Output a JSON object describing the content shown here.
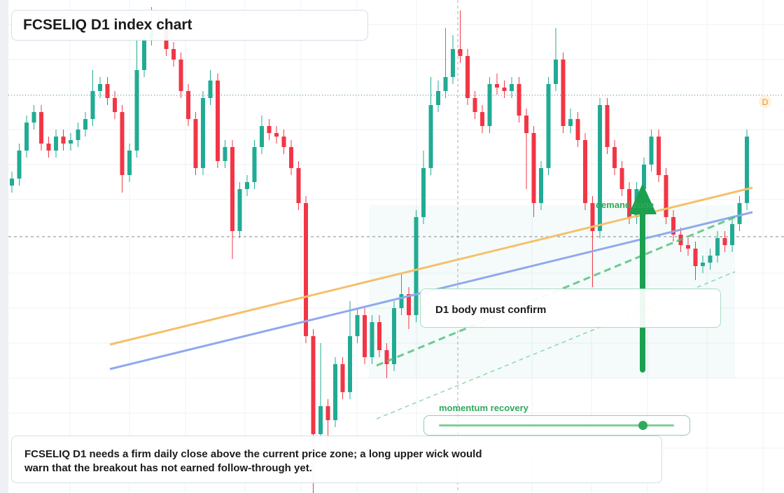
{
  "title": "FCSELIQ D1 index chart",
  "chart_data": {
    "type": "candlestick",
    "ylim": [
      0,
      704
    ],
    "up_color": "#22ab94",
    "down_color": "#f23645",
    "open": [
      439,
      449,
      489,
      529,
      544,
      499,
      489,
      509,
      499,
      504,
      519,
      534,
      574,
      584,
      564,
      544,
      454,
      489,
      604,
      649,
      664,
      674,
      634,
      619,
      574,
      534,
      464,
      564,
      589,
      474,
      494,
      374,
      434,
      444,
      494,
      524,
      514,
      509,
      494,
      464,
      414,
      224,
      84,
      124,
      104,
      184,
      144,
      224,
      254,
      194,
      244,
      204,
      184,
      264,
      284,
      254,
      394,
      464,
      554,
      574,
      594,
      634,
      624,
      564,
      544,
      524,
      584,
      579,
      574,
      584,
      539,
      514,
      414,
      464,
      584,
      619,
      524,
      534,
      504,
      414,
      374,
      554,
      494,
      464,
      434,
      394,
      434,
      469,
      509,
      454,
      394,
      369,
      354,
      349,
      324,
      329,
      339,
      364,
      354,
      384,
      414
    ],
    "high": [
      459,
      499,
      539,
      554,
      554,
      509,
      519,
      519,
      514,
      529,
      544,
      604,
      594,
      594,
      574,
      554,
      499,
      649,
      659,
      694,
      684,
      684,
      644,
      629,
      584,
      544,
      574,
      604,
      599,
      504,
      504,
      444,
      454,
      504,
      539,
      534,
      524,
      519,
      504,
      474,
      424,
      234,
      214,
      134,
      194,
      194,
      274,
      264,
      264,
      254,
      254,
      214,
      274,
      314,
      294,
      404,
      489,
      594,
      589,
      664,
      654,
      689,
      634,
      574,
      554,
      594,
      599,
      589,
      594,
      594,
      549,
      524,
      474,
      594,
      664,
      629,
      549,
      544,
      514,
      424,
      564,
      564,
      504,
      474,
      444,
      444,
      479,
      519,
      519,
      464,
      404,
      379,
      364,
      359,
      339,
      349,
      374,
      374,
      394,
      424,
      519
    ],
    "low": [
      429,
      439,
      479,
      519,
      489,
      479,
      479,
      489,
      489,
      494,
      509,
      524,
      564,
      554,
      534,
      429,
      444,
      479,
      594,
      639,
      654,
      624,
      609,
      564,
      524,
      454,
      454,
      554,
      464,
      464,
      334,
      364,
      424,
      434,
      484,
      504,
      499,
      484,
      454,
      404,
      214,
      0,
      74,
      54,
      94,
      134,
      134,
      214,
      184,
      184,
      194,
      164,
      174,
      254,
      234,
      244,
      384,
      454,
      544,
      564,
      584,
      614,
      554,
      534,
      514,
      514,
      569,
      564,
      564,
      529,
      434,
      394,
      404,
      454,
      574,
      514,
      514,
      494,
      404,
      294,
      364,
      484,
      454,
      424,
      384,
      384,
      424,
      459,
      444,
      384,
      359,
      344,
      339,
      304,
      314,
      319,
      329,
      344,
      344,
      374,
      404
    ],
    "close": [
      449,
      489,
      529,
      544,
      499,
      489,
      509,
      499,
      504,
      519,
      534,
      574,
      584,
      564,
      544,
      454,
      489,
      604,
      649,
      664,
      674,
      634,
      619,
      574,
      534,
      464,
      564,
      589,
      474,
      494,
      374,
      434,
      444,
      494,
      524,
      514,
      509,
      494,
      464,
      414,
      224,
      84,
      124,
      104,
      184,
      144,
      224,
      254,
      194,
      244,
      204,
      184,
      264,
      284,
      254,
      394,
      464,
      554,
      574,
      594,
      634,
      624,
      564,
      544,
      524,
      584,
      579,
      574,
      584,
      539,
      514,
      414,
      464,
      584,
      619,
      524,
      534,
      504,
      414,
      374,
      554,
      494,
      464,
      434,
      394,
      434,
      469,
      509,
      454,
      394,
      369,
      354,
      349,
      324,
      329,
      339,
      364,
      354,
      384,
      414,
      509
    ]
  },
  "callout": "D1 body must confirm",
  "zone_label": "demand zone",
  "slider_label": "momentum recovery",
  "badge": "D",
  "caption": [
    "FCSELIQ D1 needs a firm daily close above the current price zone; a long upper wick would",
    "warn that the breakout has not earned follow-through yet."
  ]
}
